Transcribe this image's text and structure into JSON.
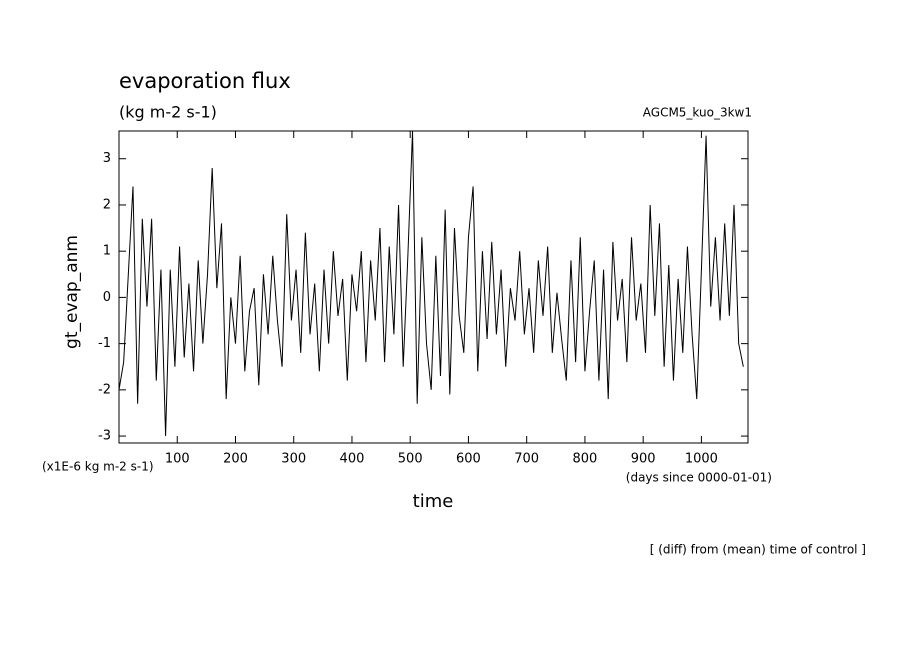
{
  "chart_data": {
    "type": "line",
    "title": "evaporation flux",
    "subtitle": "(kg m-2 s-1)",
    "experiment": "AGCM5_kuo_3kw1",
    "y_label": "gt_evap_anm",
    "y_units": "(x1E-6 kg m-2 s-1)",
    "x_units": "(days since 0000-01-01)",
    "x_label": "time",
    "note": "[ (diff) from (mean) time of control ]",
    "xlim": [
      0,
      1080
    ],
    "ylim": [
      -3.15,
      3.6
    ],
    "xticks": [
      100,
      200,
      300,
      400,
      500,
      600,
      700,
      800,
      900,
      1000
    ],
    "yticks": [
      -3,
      -2,
      -1,
      0,
      1,
      2,
      3
    ],
    "color": "#000000",
    "x": [
      0,
      8,
      16,
      24,
      32,
      40,
      48,
      56,
      64,
      72,
      80,
      88,
      96,
      104,
      112,
      120,
      128,
      136,
      144,
      152,
      160,
      168,
      176,
      184,
      192,
      200,
      208,
      216,
      224,
      232,
      240,
      248,
      256,
      264,
      272,
      280,
      288,
      296,
      304,
      312,
      320,
      328,
      336,
      344,
      352,
      360,
      368,
      376,
      384,
      392,
      400,
      408,
      416,
      424,
      432,
      440,
      448,
      456,
      464,
      472,
      480,
      488,
      496,
      504,
      512,
      520,
      528,
      536,
      544,
      552,
      560,
      568,
      576,
      584,
      592,
      600,
      608,
      616,
      624,
      632,
      640,
      648,
      656,
      664,
      672,
      680,
      688,
      696,
      704,
      712,
      720,
      728,
      736,
      744,
      752,
      760,
      768,
      776,
      784,
      792,
      800,
      808,
      816,
      824,
      832,
      840,
      848,
      856,
      864,
      872,
      880,
      888,
      896,
      904,
      912,
      920,
      928,
      936,
      944,
      952,
      960,
      968,
      976,
      984,
      992,
      1000,
      1008,
      1016,
      1024,
      1032,
      1040,
      1048,
      1056,
      1064,
      1072
    ],
    "values": [
      -2,
      -1.4,
      0.5,
      2.4,
      -2.3,
      1.7,
      -0.2,
      1.7,
      -1.8,
      0.6,
      -3.0,
      0.6,
      -1.5,
      1.1,
      -1.3,
      0.3,
      -1.6,
      0.8,
      -1.0,
      0.5,
      2.8,
      0.2,
      1.6,
      -2.2,
      0.0,
      -1.0,
      0.9,
      -1.6,
      -0.3,
      0.2,
      -1.9,
      0.5,
      -0.8,
      0.9,
      -0.5,
      -1.5,
      1.8,
      -0.5,
      0.6,
      -1.2,
      1.4,
      -0.8,
      0.3,
      -1.6,
      0.6,
      -1.0,
      1.0,
      -0.4,
      0.4,
      -1.8,
      0.5,
      -0.3,
      1.0,
      -1.4,
      0.8,
      -0.5,
      1.5,
      -1.4,
      1.1,
      -0.8,
      2.0,
      -1.5,
      0.9,
      3.6,
      -2.3,
      1.3,
      -1.0,
      -2.0,
      0.9,
      -1.7,
      1.9,
      -2.1,
      1.5,
      -0.4,
      -1.2,
      1.3,
      2.4,
      -1.6,
      1.0,
      -0.9,
      1.2,
      -0.8,
      0.6,
      -1.5,
      0.2,
      -0.5,
      1.0,
      -0.8,
      0.2,
      -1.2,
      0.8,
      -0.4,
      1.1,
      -1.2,
      0.1,
      -0.9,
      -1.8,
      0.8,
      -1.4,
      1.3,
      -1.6,
      -0.3,
      0.8,
      -1.8,
      0.6,
      -2.2,
      1.2,
      -0.5,
      0.4,
      -1.4,
      1.3,
      -0.5,
      0.3,
      -1.2,
      2.0,
      -0.4,
      1.6,
      -1.5,
      0.7,
      -1.8,
      0.4,
      -1.2,
      1.1,
      -0.8,
      -2.2,
      0.6,
      3.5,
      -0.2,
      1.3,
      -0.5,
      1.6,
      -0.4,
      2.0,
      -1.0,
      -1.5
    ]
  }
}
